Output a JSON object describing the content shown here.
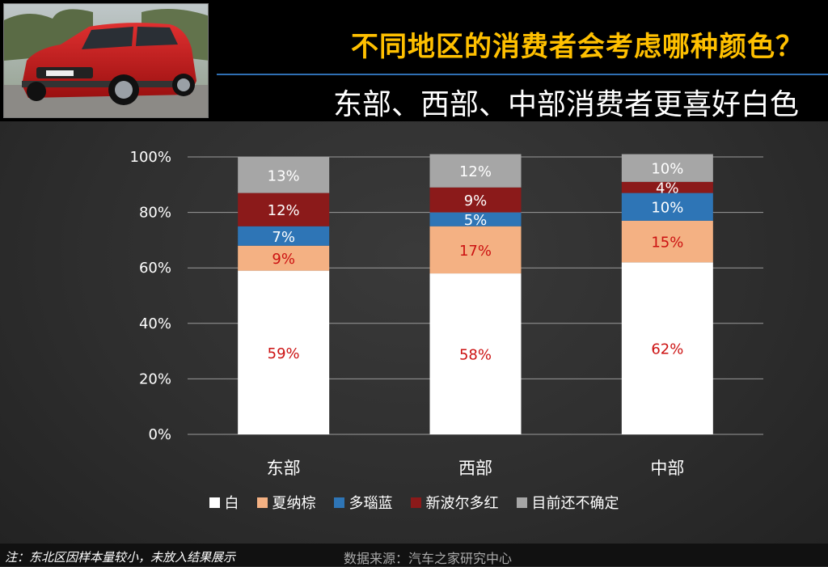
{
  "header": {
    "title": "不同地区的消费者会考虑哪种颜色？",
    "subtitle": "东部、西部、中部消费者更喜好白色"
  },
  "footer": {
    "note": "注：东北区因样本量较小，未放入结果展示",
    "source": "数据来源：汽车之家研究中心"
  },
  "chart_data": {
    "type": "bar",
    "stacked": true,
    "categories": [
      "东部",
      "西部",
      "中部"
    ],
    "series": [
      {
        "name": "白",
        "color": "#ffffff",
        "label_color": "#cc1111",
        "values": [
          59,
          58,
          62
        ]
      },
      {
        "name": "夏纳棕",
        "color": "#f4b183",
        "label_color": "#cc1111",
        "values": [
          9,
          17,
          15
        ]
      },
      {
        "name": "多瑙蓝",
        "color": "#2e75b6",
        "label_color": "#ffffff",
        "values": [
          7,
          5,
          10
        ]
      },
      {
        "name": "新波尔多红",
        "color": "#8b1a1a",
        "label_color": "#ffffff",
        "values": [
          12,
          9,
          4
        ]
      },
      {
        "name": "目前还不确定",
        "color": "#a6a6a6",
        "label_color": "#ffffff",
        "values": [
          13,
          12,
          10
        ]
      }
    ],
    "yticks": [
      "0%",
      "20%",
      "40%",
      "60%",
      "80%",
      "100%"
    ],
    "ylim": [
      0,
      100
    ],
    "unit": "%",
    "grid": true,
    "legend_position": "bottom"
  }
}
